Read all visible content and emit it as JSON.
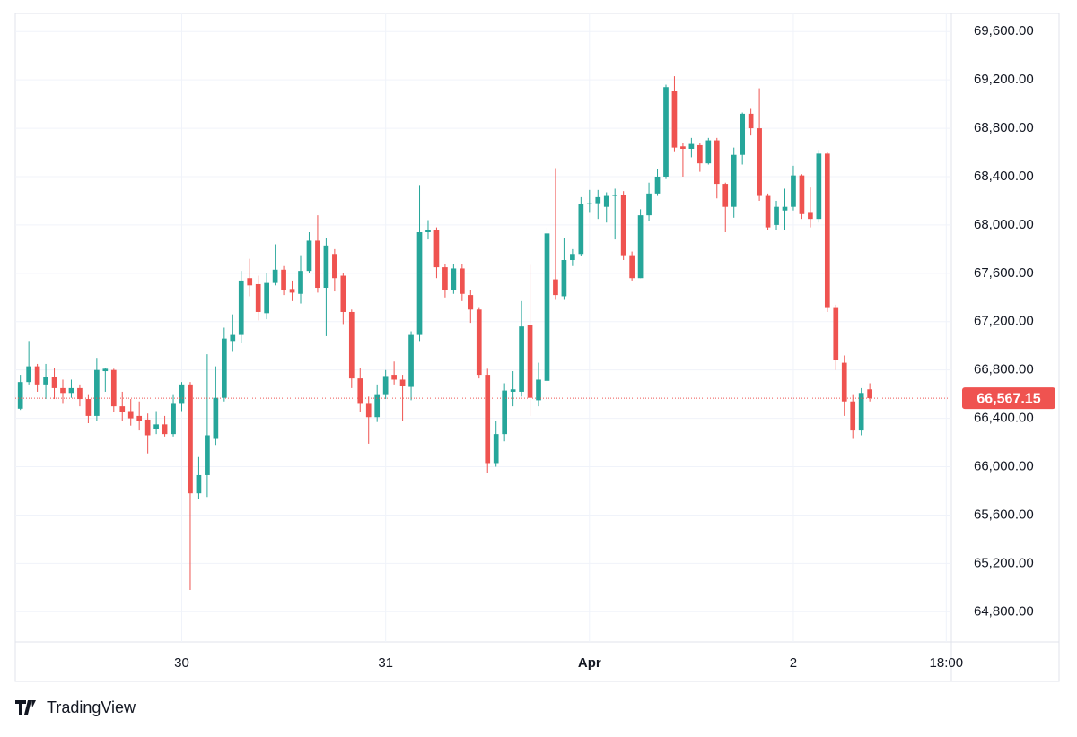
{
  "chart_data": {
    "type": "candlestick",
    "open": [
      66480,
      66700,
      66830,
      66680,
      66740,
      66650,
      66610,
      66650,
      66560,
      66420,
      66790,
      66800,
      66500,
      66460,
      66420,
      66390,
      66310,
      66350,
      66270,
      66520,
      66680,
      65780,
      65930,
      66230,
      66570,
      67040,
      67090,
      67560,
      67510,
      67270,
      67520,
      67630,
      67470,
      67430,
      67620,
      67870,
      67480,
      67760,
      67580,
      67280,
      66730,
      66520,
      66410,
      66600,
      66760,
      66720,
      66660,
      67090,
      67940,
      67960,
      67650,
      67460,
      67640,
      67420,
      67300,
      66760,
      66030,
      66270,
      66620,
      66620,
      67170,
      66550,
      66710,
      67550,
      67410,
      67710,
      67760,
      68170,
      68180,
      68150,
      68240,
      68250,
      67750,
      67560,
      68080,
      68260,
      68400,
      69110,
      68650,
      68630,
      68660,
      68510,
      68700,
      68340,
      68150,
      68580,
      68920,
      68800,
      68240,
      68000,
      68120,
      68150,
      68410,
      68100,
      68050,
      68590,
      67320,
      66860,
      66540,
      66300,
      66640
    ],
    "high": [
      66760,
      67040,
      66850,
      66850,
      66820,
      66720,
      66720,
      66680,
      66600,
      66900,
      66820,
      66810,
      66620,
      66560,
      66540,
      66440,
      66460,
      66420,
      66600,
      66700,
      66700,
      66080,
      66930,
      66830,
      67150,
      67260,
      67620,
      67720,
      67580,
      67600,
      67840,
      67660,
      67540,
      67750,
      67940,
      68080,
      67890,
      67800,
      67600,
      67300,
      66820,
      66580,
      66680,
      66800,
      66870,
      66760,
      67120,
      68330,
      68040,
      67980,
      67680,
      67680,
      67680,
      67460,
      67320,
      66810,
      66380,
      66690,
      66790,
      67370,
      67670,
      66860,
      67980,
      68470,
      67890,
      67800,
      68230,
      68290,
      68290,
      68270,
      68300,
      68280,
      67780,
      68130,
      68350,
      68460,
      69160,
      69230,
      68680,
      68720,
      68680,
      68720,
      68720,
      68350,
      68640,
      68930,
      68960,
      69130,
      68260,
      68200,
      68300,
      68490,
      68420,
      68310,
      68620,
      68600,
      67340,
      66920,
      66600,
      66650,
      66690
    ],
    "low": [
      66470,
      66680,
      66620,
      66560,
      66560,
      66520,
      66570,
      66500,
      66360,
      66380,
      66620,
      66450,
      66380,
      66340,
      66300,
      66110,
      66270,
      66250,
      66250,
      66460,
      64980,
      65730,
      65750,
      66180,
      66540,
      66950,
      67020,
      67410,
      67210,
      67220,
      67500,
      67420,
      67370,
      67350,
      67600,
      67440,
      67080,
      67450,
      67180,
      66650,
      66450,
      66190,
      66370,
      66560,
      66680,
      66380,
      66550,
      67040,
      67880,
      67560,
      67400,
      67430,
      67370,
      67190,
      66730,
      65950,
      66000,
      66210,
      66500,
      66580,
      66420,
      66500,
      66660,
      67380,
      67380,
      67660,
      67740,
      68100,
      68050,
      68020,
      67880,
      67710,
      67540,
      67560,
      68030,
      68240,
      68380,
      68610,
      68400,
      68560,
      68440,
      68500,
      68220,
      67940,
      68060,
      68500,
      68740,
      68200,
      67960,
      67960,
      67960,
      68120,
      68050,
      67980,
      68020,
      67280,
      66800,
      66420,
      66230,
      66260,
      66540
    ],
    "close": [
      66700,
      66830,
      66680,
      66740,
      66650,
      66610,
      66650,
      66560,
      66420,
      66800,
      66810,
      66500,
      66450,
      66400,
      66380,
      66260,
      66350,
      66270,
      66520,
      66680,
      65780,
      65930,
      66260,
      66570,
      67060,
      67090,
      67540,
      67500,
      67280,
      67520,
      67630,
      67460,
      67440,
      67620,
      67870,
      67480,
      67830,
      67560,
      67280,
      66730,
      66520,
      66410,
      66600,
      66750,
      66720,
      66670,
      67090,
      67940,
      67960,
      67650,
      67460,
      67640,
      67430,
      67300,
      66760,
      66030,
      66270,
      66630,
      66640,
      67160,
      66570,
      66720,
      67930,
      67420,
      67710,
      67760,
      68170,
      68180,
      68230,
      68240,
      68250,
      67750,
      67560,
      68080,
      68260,
      68400,
      69140,
      68640,
      68630,
      68670,
      68510,
      68700,
      68340,
      68150,
      68580,
      68920,
      68800,
      68240,
      67980,
      68150,
      68150,
      68410,
      68090,
      68050,
      68590,
      67320,
      66880,
      66540,
      66300,
      66610,
      66567.15
    ],
    "up_color": "#26a69a",
    "down_color": "#ef5350",
    "last_price": {
      "value": 66567.15,
      "label": "66,567.15"
    },
    "xlim": [
      -0.6,
      109.6
    ],
    "xticks": [
      {
        "value": 19,
        "label": "30"
      },
      {
        "value": 43,
        "label": "31"
      },
      {
        "value": 67,
        "label": "Apr"
      },
      {
        "value": 91,
        "label": "2"
      },
      {
        "value": 109,
        "label": "18:00"
      }
    ],
    "ylim": [
      64550,
      69750
    ],
    "yticks": [
      {
        "value": 64800,
        "label": "64,800.00"
      },
      {
        "value": 65200,
        "label": "65,200.00"
      },
      {
        "value": 65600,
        "label": "65,600.00"
      },
      {
        "value": 66000,
        "label": "66,000.00"
      },
      {
        "value": 66400,
        "label": "66,400.00"
      },
      {
        "value": 66800,
        "label": "66,800.00"
      },
      {
        "value": 67200,
        "label": "67,200.00"
      },
      {
        "value": 67600,
        "label": "67,600.00"
      },
      {
        "value": 68000,
        "label": "68,000.00"
      },
      {
        "value": 68400,
        "label": "68,400.00"
      },
      {
        "value": 68800,
        "label": "68,800.00"
      },
      {
        "value": 69200,
        "label": "69,200.00"
      },
      {
        "value": 69600,
        "label": "69,600.00"
      }
    ],
    "grid": true,
    "brand": "TradingView"
  }
}
